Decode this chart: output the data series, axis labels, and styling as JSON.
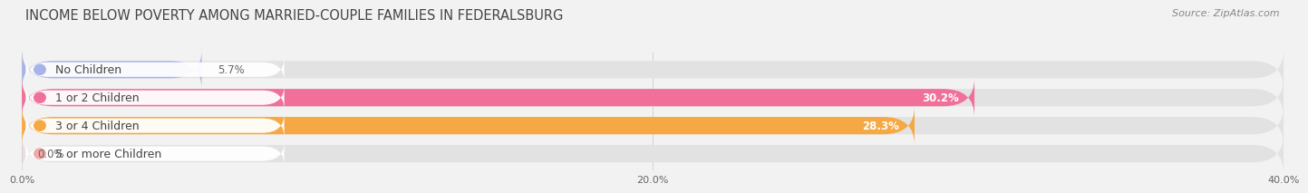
{
  "title": "INCOME BELOW POVERTY AMONG MARRIED-COUPLE FAMILIES IN FEDERALSBURG",
  "source": "Source: ZipAtlas.com",
  "categories": [
    "No Children",
    "1 or 2 Children",
    "3 or 4 Children",
    "5 or more Children"
  ],
  "values": [
    5.7,
    30.2,
    28.3,
    0.0
  ],
  "bar_colors": [
    "#a8b4e8",
    "#f0709a",
    "#f5a843",
    "#f4a8a8"
  ],
  "background_color": "#f2f2f2",
  "bar_bg_color": "#e2e2e2",
  "xlim": [
    0,
    40
  ],
  "xticks": [
    0.0,
    20.0,
    40.0
  ],
  "xtick_labels": [
    "0.0%",
    "20.0%",
    "40.0%"
  ],
  "bar_height": 0.62,
  "title_fontsize": 10.5,
  "label_fontsize": 9,
  "value_fontsize": 8.5,
  "source_fontsize": 8
}
